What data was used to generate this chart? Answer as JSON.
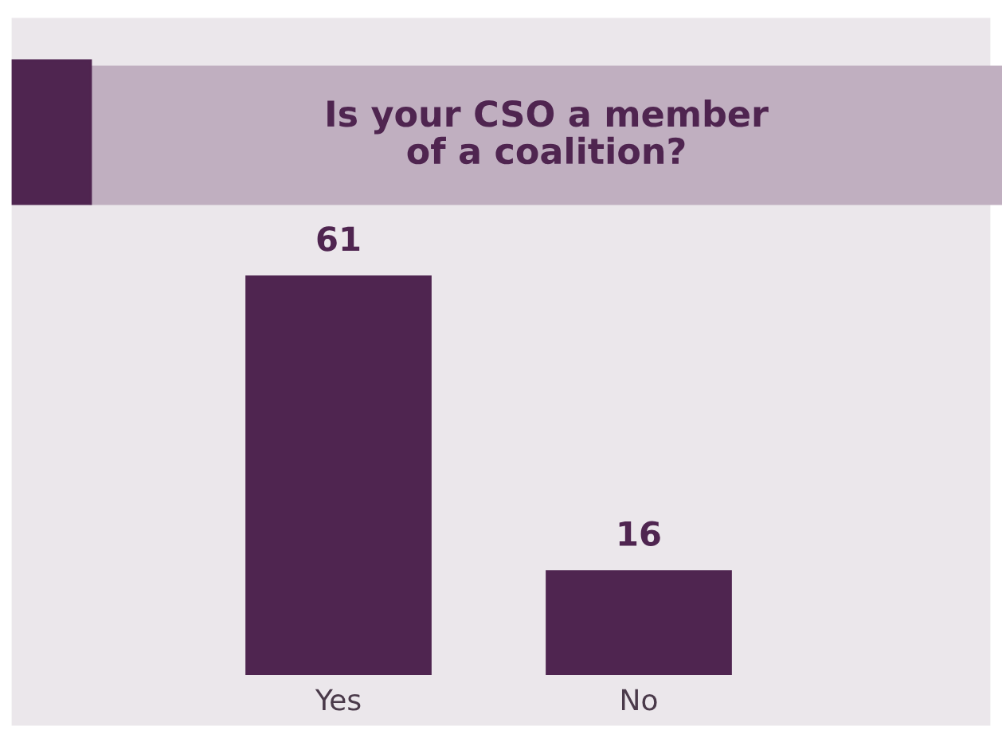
{
  "chart_data": {
    "type": "bar",
    "title": "Is your CSO a member\nof a coalition?",
    "categories": [
      "Yes",
      "No"
    ],
    "values": [
      61,
      16
    ],
    "color": "#4f2550",
    "data_labels": true
  }
}
